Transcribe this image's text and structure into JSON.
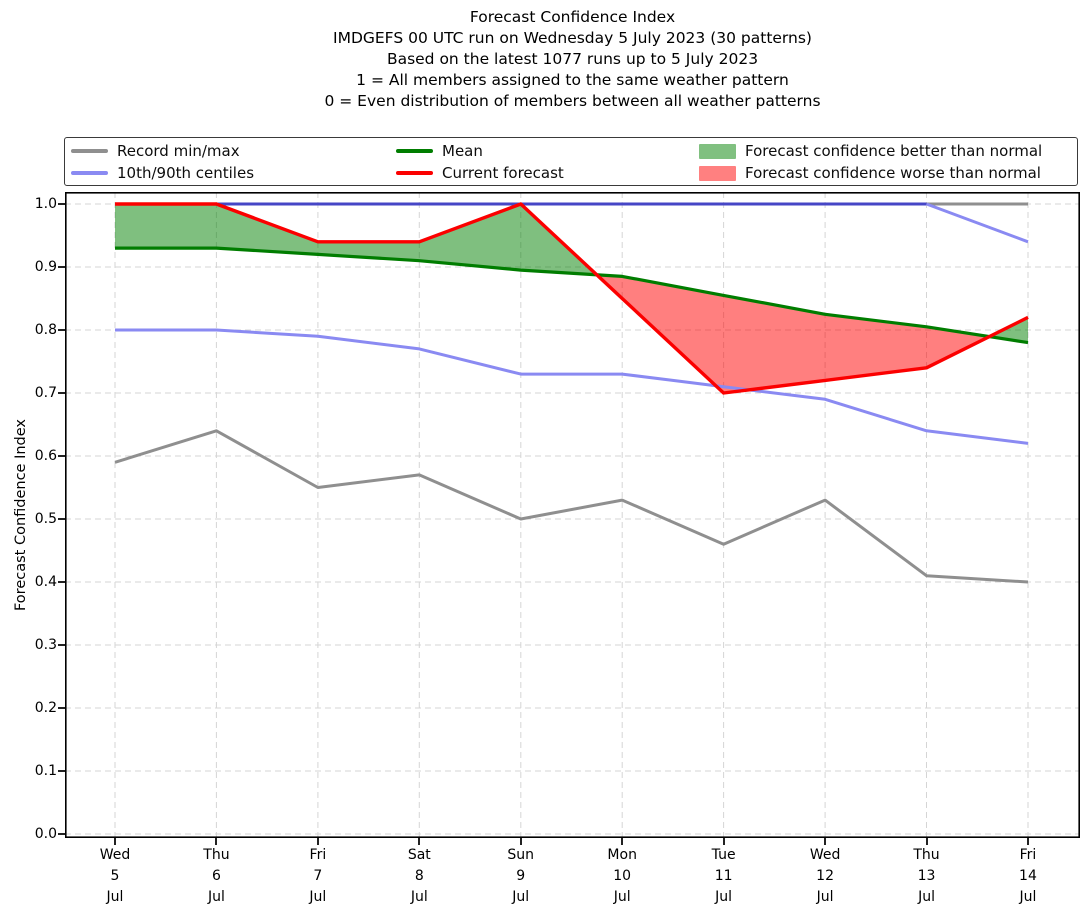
{
  "title": {
    "lines": [
      "Forecast Confidence Index",
      "IMDGEFS 00 UTC run on Wednesday 5 July 2023 (30 patterns)",
      "Based on the latest 1077 runs up to 5 July 2023",
      "1 = All members assigned to the same weather pattern",
      "0 = Even distribution of members between all weather patterns"
    ]
  },
  "legend": {
    "entries": [
      {
        "label": "Record min/max",
        "swatch": "line",
        "color": "#8f8f8f"
      },
      {
        "label": "10th/90th centiles",
        "swatch": "line",
        "color": "#8a8af2"
      },
      {
        "label": "Mean",
        "swatch": "line",
        "color": "#007d00"
      },
      {
        "label": "Current forecast",
        "swatch": "line",
        "color": "#fb0000"
      },
      {
        "label": "Forecast confidence better than normal",
        "swatch": "patch",
        "color": "#80c080"
      },
      {
        "label": "Forecast confidence worse than normal",
        "swatch": "patch",
        "color": "#ff8080"
      }
    ]
  },
  "chart_data": {
    "type": "line",
    "title": "Forecast Confidence Index",
    "ylabel": "Forecast Confidence Index",
    "ylim": [
      0.0,
      1.0
    ],
    "grid": true,
    "legend_position": "top",
    "y_tick_labels": [
      "0.0",
      "0.1",
      "0.2",
      "0.3",
      "0.4",
      "0.5",
      "0.6",
      "0.7",
      "0.8",
      "0.9",
      "1.0"
    ],
    "x_categories": [
      {
        "weekday": "Wed",
        "day": "5",
        "month": "Jul"
      },
      {
        "weekday": "Thu",
        "day": "6",
        "month": "Jul"
      },
      {
        "weekday": "Fri",
        "day": "7",
        "month": "Jul"
      },
      {
        "weekday": "Sat",
        "day": "8",
        "month": "Jul"
      },
      {
        "weekday": "Sun",
        "day": "9",
        "month": "Jul"
      },
      {
        "weekday": "Mon",
        "day": "10",
        "month": "Jul"
      },
      {
        "weekday": "Tue",
        "day": "11",
        "month": "Jul"
      },
      {
        "weekday": "Wed",
        "day": "12",
        "month": "Jul"
      },
      {
        "weekday": "Thu",
        "day": "13",
        "month": "Jul"
      },
      {
        "weekday": "Fri",
        "day": "14",
        "month": "Jul"
      }
    ],
    "series": [
      {
        "name": "Record max",
        "legend": "Record min/max",
        "color": "#8f8f8f",
        "width": 3,
        "values": [
          1.0,
          1.0,
          1.0,
          1.0,
          1.0,
          1.0,
          1.0,
          1.0,
          1.0,
          1.0
        ]
      },
      {
        "name": "Record min",
        "legend": "Record min/max",
        "color": "#8f8f8f",
        "width": 3,
        "values": [
          0.59,
          0.64,
          0.55,
          0.57,
          0.5,
          0.53,
          0.46,
          0.53,
          0.41,
          0.4
        ]
      },
      {
        "name": "90th centile",
        "legend": "10th/90th centiles",
        "color": "#8a8af2",
        "width": 3,
        "values": [
          1.0,
          1.0,
          1.0,
          1.0,
          1.0,
          1.0,
          1.0,
          1.0,
          1.0,
          0.94
        ],
        "segments": [
          {
            "to_index": 8,
            "color": "#4646c6"
          },
          {
            "to_index": 9,
            "color": "#8a8af2"
          }
        ]
      },
      {
        "name": "10th centile",
        "legend": "10th/90th centiles",
        "color": "#8a8af2",
        "width": 3,
        "values": [
          0.8,
          0.8,
          0.79,
          0.77,
          0.73,
          0.73,
          0.71,
          0.69,
          0.64,
          0.62
        ]
      },
      {
        "name": "Mean",
        "legend": "Mean",
        "color": "#007d00",
        "width": 3.2,
        "values": [
          0.93,
          0.93,
          0.92,
          0.91,
          0.895,
          0.885,
          0.855,
          0.825,
          0.805,
          0.78
        ]
      },
      {
        "name": "Current forecast",
        "legend": "Current forecast",
        "color": "#fb0000",
        "width": 3.4,
        "values": [
          1.0,
          1.0,
          0.94,
          0.94,
          1.0,
          0.85,
          0.7,
          0.72,
          0.74,
          0.82
        ]
      }
    ],
    "fills": {
      "between": [
        "Current forecast",
        "Mean"
      ],
      "better_than_normal_color": "rgba(0,128,0,0.5)",
      "worse_than_normal_color": "rgba(255,0,0,0.5)"
    }
  }
}
